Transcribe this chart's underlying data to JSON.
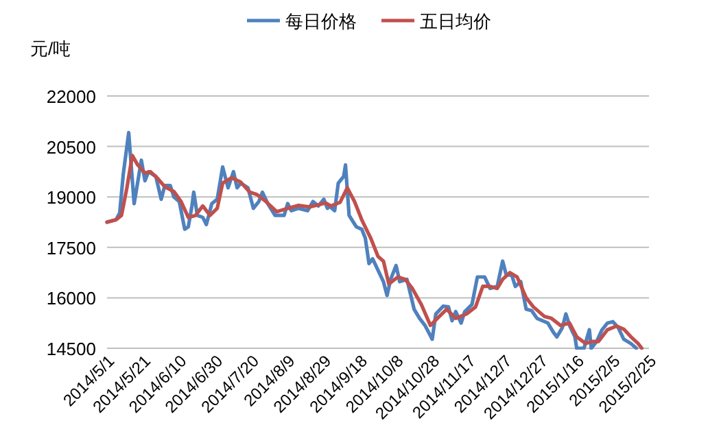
{
  "chart_data": {
    "type": "line",
    "ylabel": "元/吨",
    "legend": "top",
    "grid": "y",
    "line_style": "solid",
    "marker": "none",
    "xlim": [
      "2014-05-01",
      "2015-02-25"
    ],
    "xticks": [
      {
        "value": "2014-05-01",
        "label": "2014/5/1"
      },
      {
        "value": "2014-05-21",
        "label": "2014/5/21"
      },
      {
        "value": "2014-06-10",
        "label": "2014/6/10"
      },
      {
        "value": "2014-06-30",
        "label": "2014/6/30"
      },
      {
        "value": "2014-07-20",
        "label": "2014/7/20"
      },
      {
        "value": "2014-08-09",
        "label": "2014/8/9"
      },
      {
        "value": "2014-08-29",
        "label": "2014/8/29"
      },
      {
        "value": "2014-09-18",
        "label": "2014/9/18"
      },
      {
        "value": "2014-10-08",
        "label": "2014/10/8"
      },
      {
        "value": "2014-10-28",
        "label": "2014/10/28"
      },
      {
        "value": "2014-11-17",
        "label": "2014/11/17"
      },
      {
        "value": "2014-12-07",
        "label": "2014/12/7"
      },
      {
        "value": "2014-12-27",
        "label": "2014/12/27"
      },
      {
        "value": "2015-01-16",
        "label": "2015/1/16"
      },
      {
        "value": "2015-02-05",
        "label": "2015/2/5"
      },
      {
        "value": "2015-02-25",
        "label": "2015/2/25"
      }
    ],
    "ylim": [
      14500,
      22000
    ],
    "yticks": [
      14500,
      16000,
      17500,
      19000,
      20500,
      22000
    ],
    "series": [
      {
        "name": "每日价格",
        "color": "#4f81bd",
        "x": [
          "2014-05-01",
          "2014-05-06",
          "2014-05-08",
          "2014-05-10",
          "2014-05-13",
          "2014-05-16",
          "2014-05-20",
          "2014-05-22",
          "2014-05-24",
          "2014-05-28",
          "2014-05-31",
          "2014-06-02",
          "2014-06-05",
          "2014-06-07",
          "2014-06-10",
          "2014-06-13",
          "2014-06-15",
          "2014-06-17",
          "2014-06-18",
          "2014-06-20",
          "2014-06-23",
          "2014-06-25",
          "2014-06-28",
          "2014-07-01",
          "2014-07-04",
          "2014-07-07",
          "2014-07-10",
          "2014-07-12",
          "2014-07-14",
          "2014-07-18",
          "2014-07-21",
          "2014-07-24",
          "2014-07-26",
          "2014-07-29",
          "2014-08-02",
          "2014-08-07",
          "2014-08-09",
          "2014-08-11",
          "2014-08-15",
          "2014-08-20",
          "2014-08-23",
          "2014-08-26",
          "2014-08-29",
          "2014-08-31",
          "2014-09-01",
          "2014-09-04",
          "2014-09-06",
          "2014-09-09",
          "2014-09-10",
          "2014-09-12",
          "2014-09-16",
          "2014-09-19",
          "2014-09-21",
          "2014-09-23",
          "2014-09-25",
          "2014-09-28",
          "2014-10-01",
          "2014-10-03",
          "2014-10-05",
          "2014-10-08",
          "2014-10-10",
          "2014-10-14",
          "2014-10-18",
          "2014-10-21",
          "2014-10-24",
          "2014-10-28",
          "2014-10-30",
          "2014-11-03",
          "2014-11-06",
          "2014-11-08",
          "2014-11-10",
          "2014-11-13",
          "2014-11-15",
          "2014-11-19",
          "2014-11-22",
          "2014-11-26",
          "2014-11-29",
          "2014-12-03",
          "2014-12-06",
          "2014-12-08",
          "2014-12-11",
          "2014-12-13",
          "2014-12-16",
          "2014-12-19",
          "2014-12-22",
          "2014-12-25",
          "2014-12-31",
          "2015-01-03",
          "2015-01-05",
          "2015-01-08",
          "2015-01-10",
          "2015-01-12",
          "2015-01-15",
          "2015-01-16",
          "2015-01-20",
          "2015-01-23",
          "2015-01-24",
          "2015-01-27",
          "2015-01-30",
          "2015-02-02",
          "2015-02-05",
          "2015-02-08",
          "2015-02-11",
          "2015-02-15",
          "2015-02-18"
        ],
        "values": [
          18250,
          18320,
          18520,
          19680,
          20910,
          18800,
          20090,
          19480,
          19750,
          19610,
          18930,
          19340,
          19340,
          19000,
          18860,
          18040,
          18110,
          18730,
          19140,
          18450,
          18390,
          18180,
          18800,
          18930,
          19890,
          19270,
          19750,
          19270,
          19410,
          19270,
          18660,
          18860,
          19140,
          18800,
          18450,
          18450,
          18800,
          18590,
          18660,
          18590,
          18860,
          18730,
          18930,
          18660,
          18730,
          18590,
          19410,
          19610,
          19950,
          18450,
          18110,
          18040,
          17770,
          17020,
          17160,
          16820,
          16480,
          16070,
          16550,
          16960,
          16480,
          16550,
          15660,
          15390,
          15180,
          14770,
          15520,
          15750,
          15730,
          15320,
          15590,
          15250,
          15590,
          15800,
          16620,
          16620,
          16280,
          16340,
          17090,
          16680,
          16680,
          16340,
          16480,
          15660,
          15620,
          15390,
          15250,
          14980,
          14840,
          15110,
          15520,
          15180,
          14840,
          14500,
          14500,
          15050,
          14500,
          14700,
          15050,
          15250,
          15290,
          15110,
          14770,
          14640,
          14500
        ]
      },
      {
        "name": "五日均价",
        "color": "#c0504d",
        "x": [
          "2014-05-01",
          "2014-05-06",
          "2014-05-09",
          "2014-05-12",
          "2014-05-15",
          "2014-05-18",
          "2014-05-22",
          "2014-05-25",
          "2014-05-29",
          "2014-06-02",
          "2014-06-07",
          "2014-06-11",
          "2014-06-15",
          "2014-06-19",
          "2014-06-23",
          "2014-06-27",
          "2014-07-01",
          "2014-07-04",
          "2014-07-09",
          "2014-07-14",
          "2014-07-19",
          "2014-07-23",
          "2014-07-28",
          "2014-08-03",
          "2014-08-09",
          "2014-08-15",
          "2014-08-21",
          "2014-08-30",
          "2014-09-02",
          "2014-09-07",
          "2014-09-11",
          "2014-09-15",
          "2014-09-19",
          "2014-09-24",
          "2014-09-28",
          "2014-10-01",
          "2014-10-04",
          "2014-10-09",
          "2014-10-13",
          "2014-10-17",
          "2014-10-22",
          "2014-10-27",
          "2014-11-01",
          "2014-11-05",
          "2014-11-10",
          "2014-11-16",
          "2014-11-21",
          "2014-11-25",
          "2014-11-29",
          "2014-12-03",
          "2014-12-06",
          "2014-12-10",
          "2014-12-14",
          "2014-12-19",
          "2014-12-23",
          "2014-12-29",
          "2015-01-02",
          "2015-01-07",
          "2015-01-12",
          "2015-01-16",
          "2015-01-21",
          "2015-01-24",
          "2015-01-28",
          "2015-02-02",
          "2015-02-07",
          "2015-02-11",
          "2015-02-15",
          "2015-02-19",
          "2015-02-21"
        ],
        "values": [
          18250,
          18320,
          18450,
          19270,
          20230,
          19950,
          19710,
          19750,
          19550,
          19300,
          19160,
          18860,
          18390,
          18450,
          18730,
          18450,
          18660,
          19410,
          19570,
          19440,
          19140,
          19070,
          18860,
          18560,
          18660,
          18750,
          18700,
          18820,
          18730,
          18840,
          19270,
          18860,
          18320,
          17770,
          17230,
          17090,
          16410,
          16620,
          16550,
          16280,
          15800,
          15180,
          15450,
          15660,
          15390,
          15520,
          15730,
          16340,
          16340,
          16280,
          16550,
          16750,
          16620,
          16000,
          15730,
          15450,
          15390,
          15180,
          15250,
          14840,
          14640,
          14700,
          14700,
          15050,
          15160,
          15070,
          14840,
          14640,
          14500
        ]
      }
    ]
  }
}
